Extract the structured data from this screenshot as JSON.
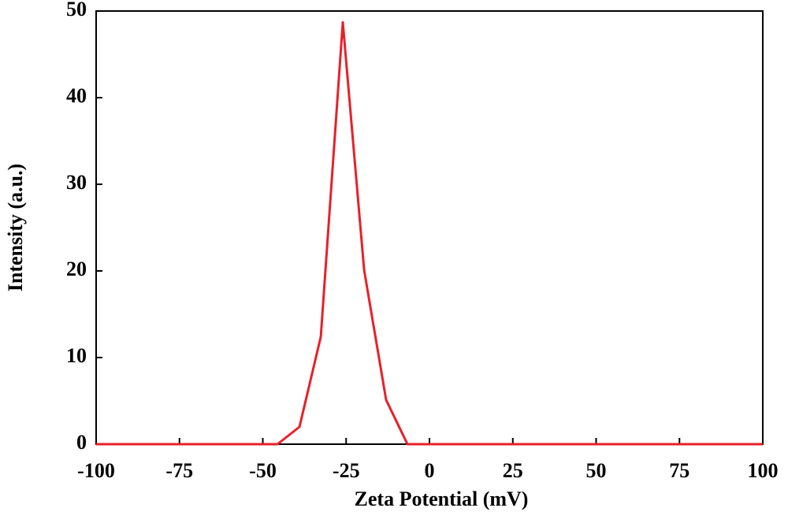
{
  "chart_data": {
    "type": "line",
    "x_label": "Zeta Potential (mV)",
    "y_label": "Intensity (a.u.)",
    "x": [
      -100,
      -45.6,
      -39,
      -32.6,
      -26,
      -19.6,
      -13,
      -6.6,
      100
    ],
    "series": [
      {
        "name": "Intensity",
        "color": "#e8202a",
        "values": [
          0,
          0,
          2,
          12.4,
          48.7,
          20.1,
          5.1,
          0,
          0
        ]
      }
    ],
    "xlim": [
      -100,
      100
    ],
    "xticks": [
      -100,
      -75,
      -50,
      -25,
      0,
      25,
      50,
      75,
      100
    ],
    "ylim": [
      0,
      50
    ],
    "yticks": [
      0,
      10,
      20,
      30,
      40,
      50
    ]
  }
}
